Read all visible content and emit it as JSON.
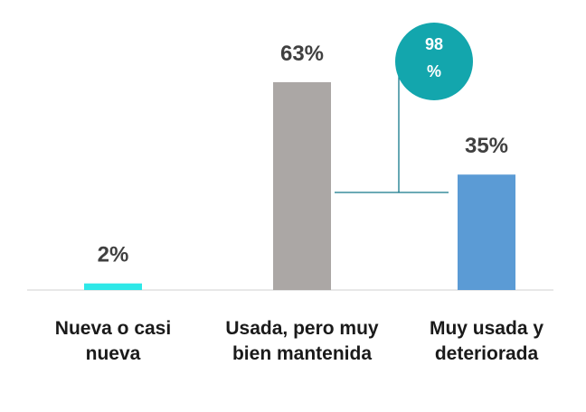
{
  "chart_data": {
    "type": "bar",
    "categories": [
      "Nueva o casi nueva",
      "Usada, pero muy bien mantenida",
      "Muy usada y deteriorada"
    ],
    "values": [
      2,
      63,
      35
    ],
    "value_labels": [
      "2%",
      "63%",
      "35%"
    ],
    "colors": [
      "#2ee8e8",
      "#aba7a5",
      "#5b9bd5"
    ],
    "annotation": {
      "lines": [
        "98",
        "%"
      ],
      "color": "#13a6ad"
    }
  }
}
